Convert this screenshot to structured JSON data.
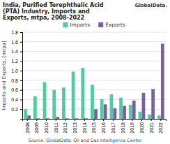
{
  "chart_data": {
    "type": "bar",
    "title": "India, Purified Terephthalic Acid\n(PTA) Industry, Imports and\nExports, mtpa, 2008-2022",
    "annotations": [
      "GlobalData.",
      "Source:  GlobalData, Oil and Gas Intelligence Center"
    ],
    "y_label": "Imports and Exports, [mtpa]",
    "categories": [
      "2008",
      "2009",
      "2010",
      "2011",
      "2012",
      "2013",
      "2014",
      "2015",
      "2016",
      "2017",
      "2018",
      "2019",
      "2020",
      "2021",
      "2022"
    ],
    "series": [
      {
        "name": "Imports",
        "color": "#4ecba0",
        "values": [
          0.2,
          0.47,
          0.76,
          0.6,
          0.65,
          0.98,
          1.06,
          0.71,
          0.41,
          0.51,
          0.44,
          0.29,
          0.15,
          0.09,
          0.07
        ]
      },
      {
        "name": "Exports",
        "color": "#7b5ea7",
        "values": [
          0.07,
          0.01,
          0.01,
          0.04,
          0.01,
          0.01,
          0.01,
          0.2,
          0.3,
          0.22,
          0.27,
          0.38,
          0.54,
          0.62,
          1.56
        ]
      }
    ],
    "ylim": [
      0,
      1.8
    ],
    "yticks": [
      0.2,
      0.4,
      0.6,
      0.8,
      {
        "value": 1.0,
        "label": "1.0"
      },
      1.2,
      1.4,
      1.6,
      1.8
    ],
    "grid": true,
    "legend": "top"
  }
}
